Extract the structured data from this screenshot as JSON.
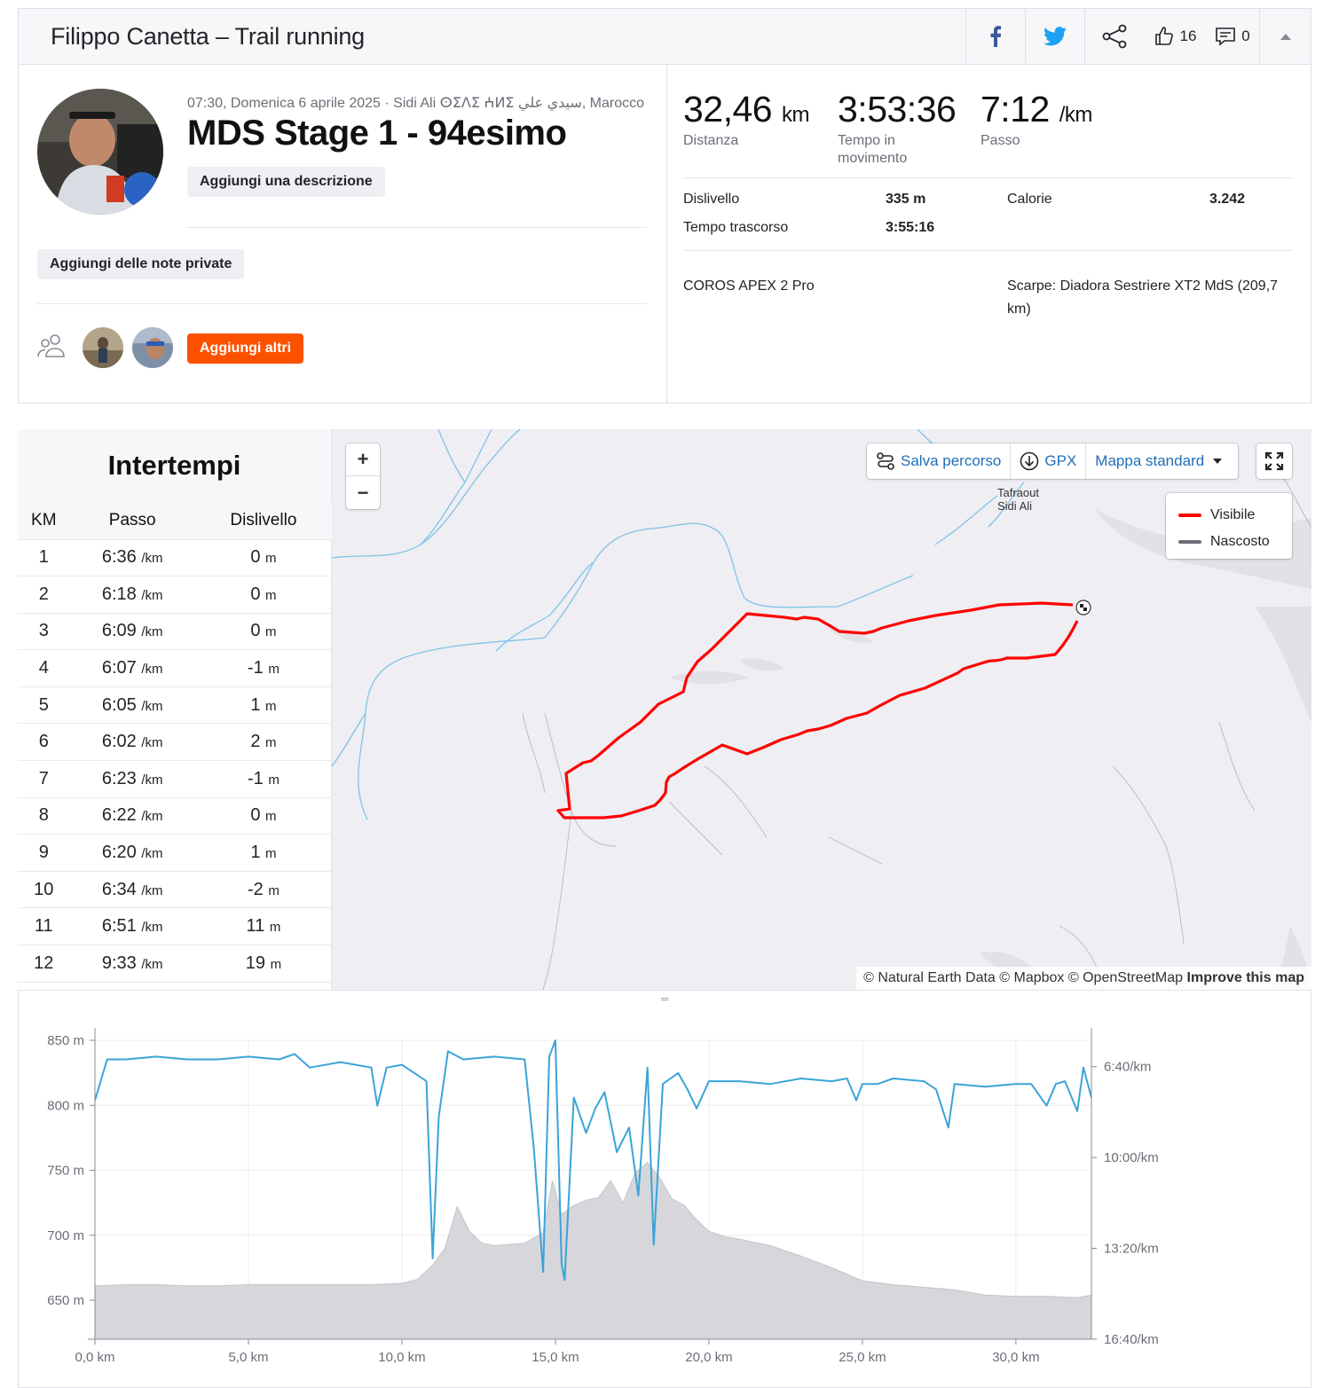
{
  "header": {
    "title": "Filippo Canetta – Trail running",
    "kudos_count": "16",
    "comments_count": "0",
    "icons": [
      "facebook-icon",
      "twitter-icon",
      "share-icon",
      "thumbs-up-icon",
      "comment-icon",
      "caret-up-icon"
    ],
    "colors": {
      "facebook": "#3b5998",
      "twitter": "#1da1f2"
    }
  },
  "activity": {
    "meta": "07:30, Domenica 6 aprile 2025 · Sidi Ali ⵙⵉⴷⵉ ⵄⵍⵉ سيدي علي, Marocco",
    "title": "MDS Stage 1 - 94esimo",
    "add_description": "Aggiungi una descrizione",
    "add_notes": "Aggiungi delle note private",
    "add_others": "Aggiungi altri"
  },
  "stats": {
    "distance": {
      "value": "32,46",
      "unit": "km",
      "label": "Distanza"
    },
    "moving_time": {
      "value": "3:53:36",
      "label": "Tempo in movimento"
    },
    "pace": {
      "value": "7:12",
      "unit": "/km",
      "label": "Passo"
    },
    "elevation_label": "Dislivello",
    "elevation_value": "335 m",
    "calories_label": "Calorie",
    "calories_value": "3.242",
    "elapsed_label": "Tempo trascorso",
    "elapsed_value": "3:55:16",
    "device": "COROS APEX 2 Pro",
    "shoes": "Scarpe: Diadora Sestriere XT2 MdS (209,7 km)"
  },
  "splits": {
    "title": "Intertempi",
    "headers": [
      "KM",
      "Passo",
      "Dislivello"
    ],
    "pace_unit": "/km",
    "elev_unit": "m",
    "rows": [
      {
        "km": "1",
        "pace": "6:36",
        "elev": "0"
      },
      {
        "km": "2",
        "pace": "6:18",
        "elev": "0"
      },
      {
        "km": "3",
        "pace": "6:09",
        "elev": "0"
      },
      {
        "km": "4",
        "pace": "6:07",
        "elev": "-1"
      },
      {
        "km": "5",
        "pace": "6:05",
        "elev": "1"
      },
      {
        "km": "6",
        "pace": "6:02",
        "elev": "2"
      },
      {
        "km": "7",
        "pace": "6:23",
        "elev": "-1"
      },
      {
        "km": "8",
        "pace": "6:22",
        "elev": "0"
      },
      {
        "km": "9",
        "pace": "6:20",
        "elev": "1"
      },
      {
        "km": "10",
        "pace": "6:34",
        "elev": "-2"
      },
      {
        "km": "11",
        "pace": "6:51",
        "elev": "11"
      },
      {
        "km": "12",
        "pace": "9:33",
        "elev": "19"
      }
    ]
  },
  "map": {
    "zoom_in": "+",
    "zoom_out": "−",
    "save_route": "Salva percorso",
    "gpx": "GPX",
    "map_style": "Mappa standard",
    "legend_visible": "Visibile",
    "legend_hidden": "Nascosto",
    "place_line1": "Tafraout",
    "place_line2": "Sidi Ali",
    "attribution": "© Natural Earth Data © Mapbox © OpenStreetMap",
    "improve": "Improve this map",
    "route_color": "#ff0000",
    "hidden_color": "#6d6d78"
  },
  "chart_data": {
    "type": "area",
    "x_unit": "km",
    "xlim": [
      0,
      32.46
    ],
    "x_ticks": [
      "0,0 km",
      "5,0 km",
      "10,0 km",
      "15,0 km",
      "20,0 km",
      "25,0 km",
      "30,0 km"
    ],
    "y_left_ticks": [
      "850 m",
      "800 m",
      "750 m",
      "700 m",
      "650 m"
    ],
    "y_left_lim": [
      620,
      850
    ],
    "y_right_ticks": [
      "6:40/km",
      "10:00/km",
      "13:20/km",
      "16:40/km"
    ],
    "y_right_lim": [
      5.7,
      16.67
    ],
    "grid": true,
    "series": [
      {
        "name": "Elevation",
        "color": "#d6d6db",
        "x": [
          0,
          1,
          2,
          3,
          4,
          5,
          6,
          7,
          8,
          9,
          10,
          10.5,
          11,
          11.4,
          11.8,
          12.2,
          12.6,
          13,
          14,
          14.6,
          14.9,
          15.2,
          15.6,
          16,
          16.4,
          16.8,
          17.2,
          17.6,
          18,
          18.4,
          18.8,
          19.2,
          19.6,
          20,
          20.5,
          21,
          22,
          23,
          24,
          25,
          26,
          27,
          28,
          29,
          30,
          31,
          32,
          32.46
        ],
        "y": [
          661,
          662,
          662,
          661,
          661,
          662,
          662,
          662,
          662,
          662,
          663,
          666,
          677,
          690,
          722,
          703,
          694,
          692,
          694,
          702,
          742,
          716,
          723,
          727,
          729,
          742,
          725,
          748,
          756,
          744,
          728,
          723,
          712,
          703,
          699,
          697,
          692,
          684,
          675,
          665,
          662,
          660,
          658,
          654,
          653,
          653,
          652,
          654
        ]
      },
      {
        "name": "Pace",
        "color": "#3aa4d8",
        "unit": "min/km",
        "x": [
          0,
          0.4,
          1,
          2,
          3,
          4,
          5,
          6,
          6.5,
          7,
          8,
          9,
          9.2,
          9.5,
          10,
          10.8,
          11.0,
          11.2,
          11.5,
          12,
          13,
          14,
          14.3,
          14.6,
          14.8,
          15.0,
          15.2,
          15.3,
          15.6,
          16,
          16.3,
          16.6,
          17,
          17.4,
          17.7,
          18,
          18.2,
          18.5,
          19,
          19.3,
          19.6,
          20,
          21,
          22,
          23,
          24,
          24.5,
          24.8,
          25,
          25.5,
          26,
          27,
          27.4,
          27.8,
          28,
          29,
          30,
          30.5,
          31,
          31.3,
          31.6,
          32,
          32.2,
          32.46
        ],
        "y": [
          7.9,
          6.4,
          6.4,
          6.3,
          6.4,
          6.4,
          6.3,
          6.4,
          6.2,
          6.7,
          6.5,
          6.7,
          8.1,
          6.7,
          6.6,
          7.2,
          13.7,
          8.5,
          6.1,
          6.4,
          6.3,
          6.4,
          9.7,
          14.2,
          6.3,
          5.7,
          13.9,
          14.5,
          7.8,
          9.1,
          8.2,
          7.6,
          9.8,
          8.9,
          11.4,
          6.7,
          13.2,
          7.3,
          6.9,
          7.5,
          8.2,
          7.2,
          7.2,
          7.3,
          7.1,
          7.2,
          7.1,
          7.9,
          7.3,
          7.3,
          7.1,
          7.2,
          7.5,
          8.9,
          7.3,
          7.4,
          7.3,
          7.3,
          8.1,
          7.3,
          7.2,
          8.3,
          6.7,
          7.8
        ]
      }
    ]
  }
}
